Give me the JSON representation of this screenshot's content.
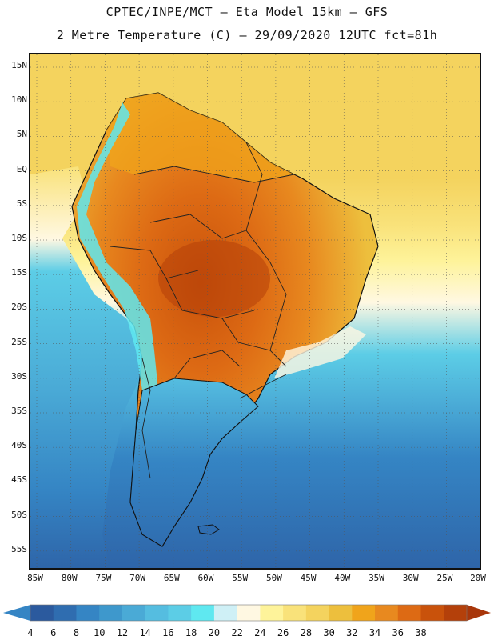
{
  "header": {
    "line1": "CPTEC/INPE/MCT –  Eta Model 15km – GFS",
    "line2": "2 Metre Temperature (C) – 29/09/2020 12UTC fct=81h"
  },
  "map": {
    "region": "South America",
    "variable": "2 Metre Temperature",
    "units": "C",
    "lat_ticks": [
      "15N",
      "10N",
      "5N",
      "EQ",
      "5S",
      "10S",
      "15S",
      "20S",
      "25S",
      "30S",
      "35S",
      "40S",
      "45S",
      "50S",
      "55S"
    ],
    "lon_ticks": [
      "85W",
      "80W",
      "75W",
      "70W",
      "65W",
      "60W",
      "55W",
      "50W",
      "45W",
      "40W",
      "35W",
      "30W",
      "25W",
      "20W"
    ],
    "colors": {
      "ocean_cold_deep": "#2e64a8",
      "ocean_cold": "#3585c4",
      "ocean_mid": "#4aaad6",
      "ocean_cool": "#5ccde6",
      "ocean_warm": "#eecb59",
      "ocean_warm_north": "#f4d35e",
      "land_hot": "#e8891f",
      "land_very_hot": "#c9520b",
      "andes_cool": "#5fe8f0",
      "coast_line": "#111111"
    }
  },
  "colorbar": {
    "labels": [
      "4",
      "6",
      "8",
      "10",
      "12",
      "14",
      "16",
      "18",
      "20",
      "22",
      "24",
      "26",
      "28",
      "30",
      "32",
      "34",
      "36",
      "38"
    ],
    "colors": [
      "#2b5a9e",
      "#2f6db0",
      "#3585c4",
      "#3e98cc",
      "#4aaad6",
      "#55bde0",
      "#5ccde6",
      "#5fe8f0",
      "#cff0f6",
      "#fff8e2",
      "#fef39a",
      "#f9e27a",
      "#f4d35e",
      "#edbf3d",
      "#f0a41b",
      "#e8891f",
      "#dd6a14",
      "#c9520b",
      "#b4400a"
    ]
  }
}
